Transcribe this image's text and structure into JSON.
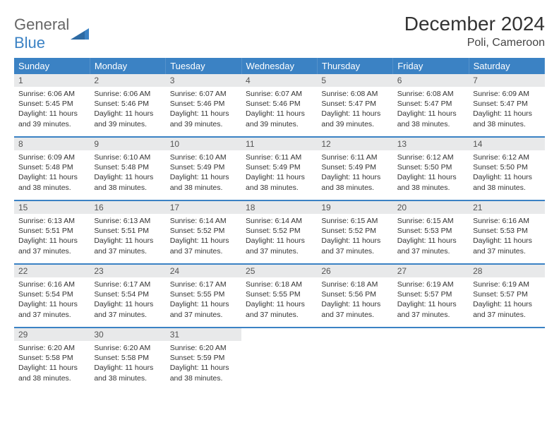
{
  "brand": {
    "word1": "General",
    "word2": "Blue"
  },
  "title": "December 2024",
  "location": "Poli, Cameroon",
  "colors": {
    "header_bg": "#3b82c4",
    "header_text": "#ffffff",
    "daynum_bg": "#e8e9ea",
    "row_divider": "#3b82c4",
    "body_text": "#333333",
    "page_bg": "#ffffff"
  },
  "weekdays": [
    "Sunday",
    "Monday",
    "Tuesday",
    "Wednesday",
    "Thursday",
    "Friday",
    "Saturday"
  ],
  "weeks": [
    [
      {
        "n": "1",
        "sr": "6:06 AM",
        "ss": "5:45 PM",
        "dl": "11 hours and 39 minutes."
      },
      {
        "n": "2",
        "sr": "6:06 AM",
        "ss": "5:46 PM",
        "dl": "11 hours and 39 minutes."
      },
      {
        "n": "3",
        "sr": "6:07 AM",
        "ss": "5:46 PM",
        "dl": "11 hours and 39 minutes."
      },
      {
        "n": "4",
        "sr": "6:07 AM",
        "ss": "5:46 PM",
        "dl": "11 hours and 39 minutes."
      },
      {
        "n": "5",
        "sr": "6:08 AM",
        "ss": "5:47 PM",
        "dl": "11 hours and 39 minutes."
      },
      {
        "n": "6",
        "sr": "6:08 AM",
        "ss": "5:47 PM",
        "dl": "11 hours and 38 minutes."
      },
      {
        "n": "7",
        "sr": "6:09 AM",
        "ss": "5:47 PM",
        "dl": "11 hours and 38 minutes."
      }
    ],
    [
      {
        "n": "8",
        "sr": "6:09 AM",
        "ss": "5:48 PM",
        "dl": "11 hours and 38 minutes."
      },
      {
        "n": "9",
        "sr": "6:10 AM",
        "ss": "5:48 PM",
        "dl": "11 hours and 38 minutes."
      },
      {
        "n": "10",
        "sr": "6:10 AM",
        "ss": "5:49 PM",
        "dl": "11 hours and 38 minutes."
      },
      {
        "n": "11",
        "sr": "6:11 AM",
        "ss": "5:49 PM",
        "dl": "11 hours and 38 minutes."
      },
      {
        "n": "12",
        "sr": "6:11 AM",
        "ss": "5:49 PM",
        "dl": "11 hours and 38 minutes."
      },
      {
        "n": "13",
        "sr": "6:12 AM",
        "ss": "5:50 PM",
        "dl": "11 hours and 38 minutes."
      },
      {
        "n": "14",
        "sr": "6:12 AM",
        "ss": "5:50 PM",
        "dl": "11 hours and 38 minutes."
      }
    ],
    [
      {
        "n": "15",
        "sr": "6:13 AM",
        "ss": "5:51 PM",
        "dl": "11 hours and 37 minutes."
      },
      {
        "n": "16",
        "sr": "6:13 AM",
        "ss": "5:51 PM",
        "dl": "11 hours and 37 minutes."
      },
      {
        "n": "17",
        "sr": "6:14 AM",
        "ss": "5:52 PM",
        "dl": "11 hours and 37 minutes."
      },
      {
        "n": "18",
        "sr": "6:14 AM",
        "ss": "5:52 PM",
        "dl": "11 hours and 37 minutes."
      },
      {
        "n": "19",
        "sr": "6:15 AM",
        "ss": "5:52 PM",
        "dl": "11 hours and 37 minutes."
      },
      {
        "n": "20",
        "sr": "6:15 AM",
        "ss": "5:53 PM",
        "dl": "11 hours and 37 minutes."
      },
      {
        "n": "21",
        "sr": "6:16 AM",
        "ss": "5:53 PM",
        "dl": "11 hours and 37 minutes."
      }
    ],
    [
      {
        "n": "22",
        "sr": "6:16 AM",
        "ss": "5:54 PM",
        "dl": "11 hours and 37 minutes."
      },
      {
        "n": "23",
        "sr": "6:17 AM",
        "ss": "5:54 PM",
        "dl": "11 hours and 37 minutes."
      },
      {
        "n": "24",
        "sr": "6:17 AM",
        "ss": "5:55 PM",
        "dl": "11 hours and 37 minutes."
      },
      {
        "n": "25",
        "sr": "6:18 AM",
        "ss": "5:55 PM",
        "dl": "11 hours and 37 minutes."
      },
      {
        "n": "26",
        "sr": "6:18 AM",
        "ss": "5:56 PM",
        "dl": "11 hours and 37 minutes."
      },
      {
        "n": "27",
        "sr": "6:19 AM",
        "ss": "5:57 PM",
        "dl": "11 hours and 37 minutes."
      },
      {
        "n": "28",
        "sr": "6:19 AM",
        "ss": "5:57 PM",
        "dl": "11 hours and 37 minutes."
      }
    ],
    [
      {
        "n": "29",
        "sr": "6:20 AM",
        "ss": "5:58 PM",
        "dl": "11 hours and 38 minutes."
      },
      {
        "n": "30",
        "sr": "6:20 AM",
        "ss": "5:58 PM",
        "dl": "11 hours and 38 minutes."
      },
      {
        "n": "31",
        "sr": "6:20 AM",
        "ss": "5:59 PM",
        "dl": "11 hours and 38 minutes."
      },
      null,
      null,
      null,
      null
    ]
  ],
  "labels": {
    "sunrise": "Sunrise:",
    "sunset": "Sunset:",
    "daylight": "Daylight:"
  }
}
